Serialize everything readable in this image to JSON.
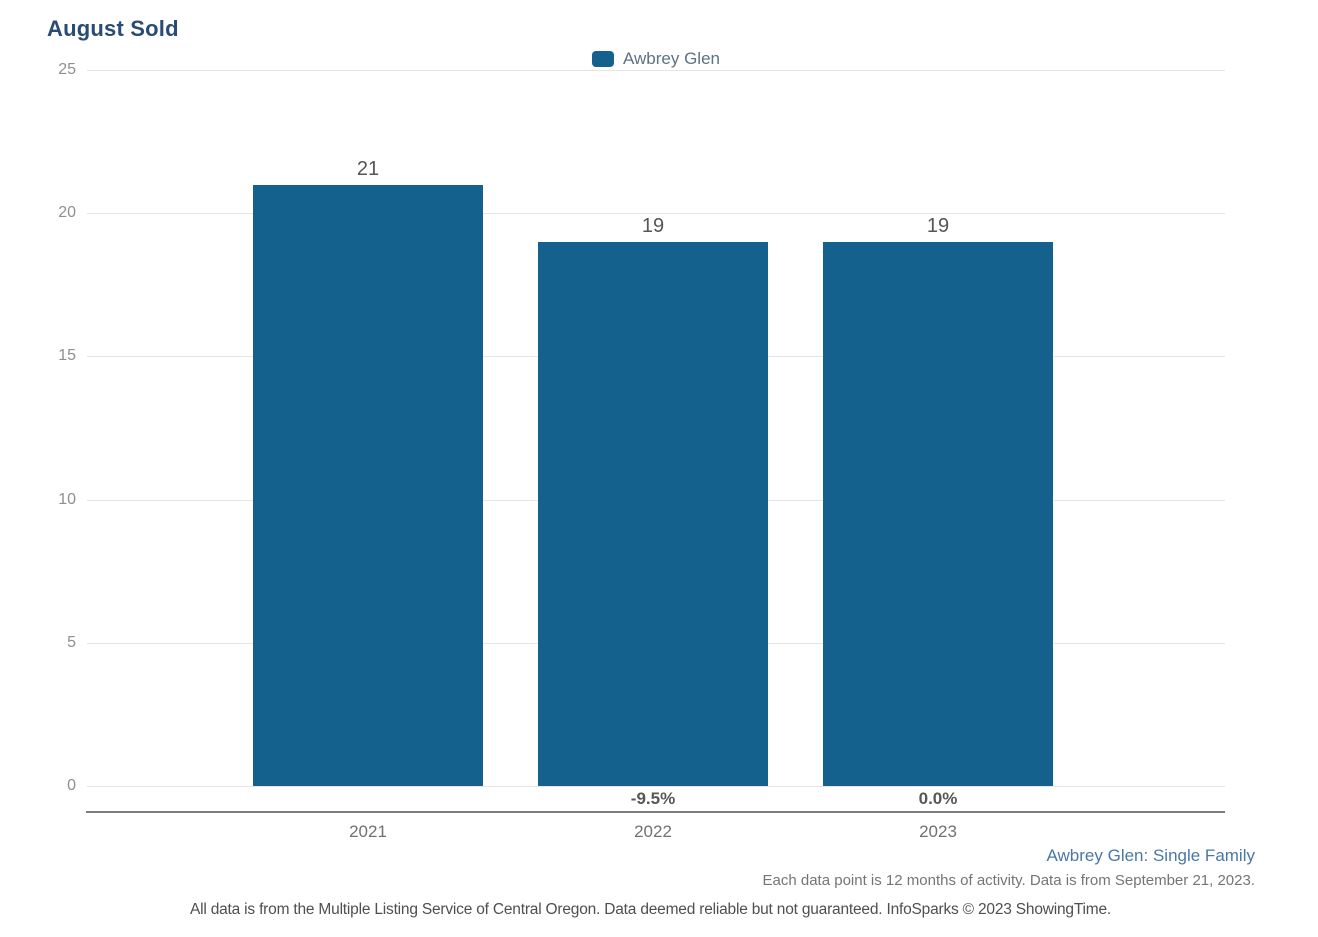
{
  "title": "August Sold",
  "legend": {
    "label": "Awbrey Glen"
  },
  "chart_data": {
    "type": "bar",
    "title": "August Sold",
    "categories": [
      "2021",
      "2022",
      "2023"
    ],
    "values": [
      21,
      19,
      19
    ],
    "pct_change": [
      null,
      "-9.5%",
      "0.0%"
    ],
    "yticks": [
      0,
      5,
      10,
      15,
      20,
      25
    ],
    "ylim": [
      0,
      25
    ],
    "grid": true,
    "legend": [
      "Awbrey Glen"
    ],
    "legend_position": "top-center",
    "bar_color": "#15618e",
    "xlabel": "",
    "ylabel": ""
  },
  "colors": {
    "bar": "#15618e",
    "title": "#2a4b76",
    "series_note": "#4a78a6"
  },
  "notes": {
    "series": "Awbrey Glen: Single Family",
    "data_point": "Each data point is 12 months of activity. Data is from September 21, 2023.",
    "disclaimer": "All data is from the Multiple Listing Service of Central Oregon. Data deemed reliable but not guaranteed. InfoSparks © 2023 ShowingTime."
  }
}
